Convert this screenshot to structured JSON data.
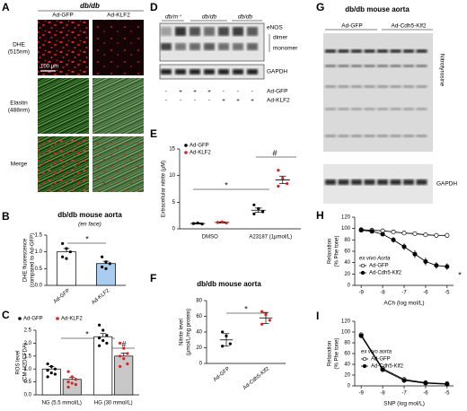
{
  "panels": {
    "A": {
      "label": "A",
      "title": "db/db",
      "columns": [
        "Ad-GFP",
        "Ad-KLF2"
      ],
      "rows": [
        [
          "DHE",
          "(515nm)"
        ],
        [
          "Elastin",
          "(488nm)"
        ],
        [
          "Merge"
        ]
      ],
      "scale_bar": "100 μm"
    },
    "D": {
      "label": "D",
      "groups": [
        "db/m⁺",
        "db/db",
        "db/db"
      ],
      "blot_labels": [
        "eNOS",
        "dimer",
        "monomer"
      ],
      "loading": "GAPDH",
      "rows": [
        {
          "name": "Ad-GFP",
          "signs": [
            "-",
            "+",
            "+",
            "+",
            "-",
            "-",
            "-"
          ]
        },
        {
          "name": "Ad-KLF2",
          "signs": [
            "-",
            "-",
            "-",
            "-",
            "+",
            "+",
            "+"
          ]
        }
      ]
    },
    "G": {
      "label": "G",
      "title": "db/db mouse aorta",
      "groups": [
        "Ad-GFP",
        "Ad-Cdh5-Klf2"
      ],
      "blot_label": "Nitrotyrosine",
      "loading": "GAPDH"
    }
  },
  "chart_data": [
    {
      "panel": "B",
      "type": "bar",
      "title": "db/db mouse aorta",
      "subtitle": "(en face)",
      "ylabel": [
        "DHE fluorescence",
        "(compared to Ad-GFP)"
      ],
      "categories": [
        "Ad-GFP",
        "Ad-KLF2"
      ],
      "values": [
        1.0,
        0.65
      ],
      "errors": [
        0.1,
        0.07
      ],
      "colors": [
        "#ffffff",
        "#a9cdf0"
      ],
      "point_color": "#000000",
      "points": [
        [
          1.25,
          1.1,
          1.0,
          0.85,
          0.8
        ],
        [
          0.85,
          0.7,
          0.65,
          0.55,
          0.5
        ]
      ],
      "ylim": [
        0,
        1.5
      ],
      "yticks": [
        {
          "value": 0,
          "label": "0.0"
        },
        0.5,
        {
          "value": 1,
          "label": "1.0"
        },
        1.5
      ],
      "annotations": [
        "*"
      ]
    },
    {
      "panel": "C",
      "type": "grouped_bar",
      "ylabel": [
        "ROS level",
        "(CM-H2DCFDA)"
      ],
      "groups": [
        "NG (5.5 mmol/L)",
        "HG (30 mmol/L)"
      ],
      "series": [
        {
          "name": "Ad-GFP",
          "color": "#ffffff",
          "point_color": "#000000",
          "values": [
            1.0,
            2.25
          ],
          "errors": [
            0.1,
            0.12
          ],
          "points": [
            [
              1.2,
              1.1,
              1.0,
              0.95,
              0.85,
              0.8,
              0.7
            ],
            [
              2.7,
              2.5,
              2.3,
              2.2,
              2.1,
              2.0,
              1.9
            ]
          ]
        },
        {
          "name": "Ad-KLF2",
          "color": "#c8c8c8",
          "point_color": "#e02020",
          "values": [
            0.6,
            1.5
          ],
          "errors": [
            0.08,
            0.12
          ],
          "points": [
            [
              0.9,
              0.7,
              0.6,
              0.5,
              0.45,
              0.4,
              0.3
            ],
            [
              2.0,
              1.8,
              1.6,
              1.5,
              1.4,
              1.2,
              1.1
            ]
          ]
        }
      ],
      "ylim": [
        0,
        2.5
      ],
      "yticks": [
        {
          "value": 0,
          "label": "0.0"
        },
        0.5,
        {
          "value": 1,
          "label": "1.0"
        },
        1.5,
        {
          "value": 2,
          "label": "2.0"
        },
        2.5
      ],
      "annotations": [
        "*",
        "#"
      ]
    },
    {
      "panel": "E",
      "type": "dot_group",
      "ylabel": [
        "Extracellular nitrite (μM)"
      ],
      "groups": [
        "DMSO",
        "A23187 (1μmol/L)"
      ],
      "series": [
        {
          "name": "Ad-GFP",
          "point_color": "#000000",
          "values": [
            1.0,
            3.5
          ],
          "errors": [
            0.1,
            0.4
          ],
          "points": [
            [
              1.0,
              1.1,
              0.9,
              1.0
            ],
            [
              4.5,
              3.8,
              3.2,
              2.8
            ]
          ]
        },
        {
          "name": "Ad-KLF2",
          "point_color": "#e02020",
          "values": [
            1.2,
            9.2
          ],
          "errors": [
            0.1,
            0.7
          ],
          "points": [
            [
              1.2,
              1.3,
              1.1,
              1.2
            ],
            [
              11,
              9.5,
              8.5,
              8
            ]
          ]
        }
      ],
      "ylim": [
        0,
        15
      ],
      "yticks": [
        0,
        5,
        10,
        15
      ],
      "annotations": [
        "*",
        "#"
      ]
    },
    {
      "panel": "F",
      "type": "dot",
      "title": "db/db mouse aorta",
      "ylabel": [
        "Nitrite level",
        "(μmol/L/mg protein)"
      ],
      "categories": [
        "Ad-GFP",
        "Ad-Cdh5-Klf2"
      ],
      "values": [
        30,
        58
      ],
      "errors": [
        8,
        7
      ],
      "point_color": "#000000",
      "point_colors": [
        "#000000",
        "#e02020"
      ],
      "points": [
        [
          40,
          35,
          25,
          22
        ],
        [
          66,
          62,
          55,
          50
        ]
      ],
      "ylim": [
        0,
        80
      ],
      "yticks": [
        0,
        20,
        40,
        60,
        80
      ],
      "annotations": [
        "*"
      ]
    },
    {
      "panel": "H",
      "type": "line",
      "ylabel": [
        "Relaxation",
        "(% Phe tone)"
      ],
      "xlabel": "ACh (log mol/L)",
      "legend_title": "ex vivo Aorta",
      "x": [
        -9,
        -8.5,
        -8,
        -7.5,
        -7,
        -6.5,
        -6,
        -5.5,
        -5
      ],
      "series": [
        {
          "name": "Ad-GFP",
          "color": "#000000",
          "fill": "#ffffff",
          "values": [
            98,
            97,
            96,
            94,
            92,
            91,
            89,
            88,
            88
          ],
          "errors": [
            2,
            2,
            3,
            3,
            3,
            4,
            4,
            4,
            4
          ]
        },
        {
          "name": "Ad-Cdh5-Klf2",
          "color": "#000000",
          "fill": "#000000",
          "values": [
            97,
            95,
            90,
            80,
            68,
            55,
            42,
            35,
            33
          ],
          "errors": [
            2,
            3,
            4,
            5,
            6,
            7,
            7,
            6,
            6
          ]
        }
      ],
      "xlim": [
        -9.3,
        -4.7
      ],
      "xticks": [
        -9,
        -8,
        -7,
        -6,
        -5
      ],
      "ylim": [
        0,
        120
      ],
      "yticks": [
        0,
        20,
        40,
        60,
        80,
        100,
        120
      ],
      "annotations": [
        "*"
      ]
    },
    {
      "panel": "I",
      "type": "line",
      "ylabel": [
        "Relaxation",
        "(% Phe tone)"
      ],
      "xlabel": "SNP (log mol/L)",
      "legend_title": "ex vivo aorta",
      "x": [
        -9,
        -8,
        -7,
        -6,
        -5
      ],
      "series": [
        {
          "name": "Ad-GFP",
          "color": "#000000",
          "fill": "#ffffff",
          "values": [
            95,
            32,
            12,
            6,
            4
          ],
          "errors": [
            4,
            4,
            3,
            2,
            2
          ]
        },
        {
          "name": "Ad-Cdh5-Klf2",
          "color": "#000000",
          "fill": "#000000",
          "values": [
            93,
            30,
            10,
            5,
            3
          ],
          "errors": [
            4,
            4,
            3,
            2,
            2
          ]
        }
      ],
      "xlim": [
        -9.3,
        -4.7
      ],
      "xticks": [
        -9,
        -8,
        -7,
        -6,
        -5
      ],
      "ylim": [
        0,
        120
      ],
      "yticks": [
        0,
        20,
        40,
        60,
        80,
        100,
        120
      ],
      "annotations": []
    }
  ]
}
